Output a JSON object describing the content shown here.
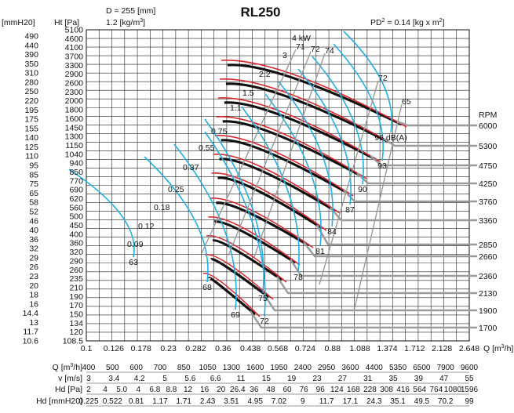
{
  "header": {
    "diameter": "D = 255 [mm]",
    "density": "1.2 [kg/m",
    "density_sup": "3",
    "density_close": "]",
    "title": "RL250",
    "pd2": "PD",
    "pd2_sup": "2",
    "pd2_rest": " = 0.14 [kg x m",
    "pd2_sup2": "2",
    "pd2_close": "]",
    "left_unit_mm": "[mmH20]",
    "left_unit_pa": "Ht [Pa]",
    "rpm_label": "RPM",
    "q_unit_right": "Q [m",
    "q_unit_right_sup": "3",
    "q_unit_right_close": "/h]"
  },
  "chart_data": {
    "type": "line",
    "title": "RL250",
    "y_pa_ticks": [
      "5100",
      "4600",
      "4100",
      "3700",
      "3300",
      "2900",
      "2600",
      "2300",
      "2000",
      "1800",
      "1600",
      "1450",
      "1300",
      "1150",
      "1040",
      "940",
      "850",
      "770",
      "690",
      "620",
      "560",
      "500",
      "450",
      "400",
      "360",
      "320",
      "290",
      "260",
      "235",
      "210",
      "190",
      "170",
      "150",
      "134",
      "120",
      "108.5"
    ],
    "y_mm_ticks": [
      "490",
      "440",
      "390",
      "350",
      "310",
      "280",
      "250",
      "220",
      "195",
      "175",
      "155",
      "140",
      "125",
      "110",
      "95",
      "85",
      "75",
      "65",
      "58",
      "52",
      "46",
      "40",
      "36",
      "32",
      "29",
      "26",
      "23",
      "20",
      "18",
      "16",
      "14.4",
      "13",
      "11.7",
      "10.6"
    ],
    "x_ticks": [
      "0.1",
      "0.126",
      "0.178",
      "0.23",
      "0.282",
      "0.36",
      "0.438",
      "0.568",
      "0.724",
      "0.88",
      "1.088",
      "1.374",
      "1.712",
      "2.128",
      "2.648"
    ],
    "rpm_values": [
      "6000",
      "5300",
      "4750",
      "4250",
      "3760",
      "3360",
      "2850",
      "2660",
      "2360",
      "2130",
      "1900",
      "1700"
    ],
    "power_labels": [
      "4 kW",
      "3",
      "2.2",
      "1.5",
      "1.1",
      "0.75",
      "0.55",
      "0.37",
      "0.25",
      "0.18",
      "0.12",
      "0.09"
    ],
    "efficiency_labels": [
      "71",
      "72",
      "74",
      "72",
      "65"
    ],
    "noise_labels": [
      "96 dB(A)",
      "93",
      "90",
      "87",
      "84",
      "81",
      "78",
      "75",
      "72",
      "69",
      "68",
      "63"
    ],
    "bottom_scales": {
      "q_label": "Q [m",
      "q_label_sup": "3",
      "q_label_close": "/h]",
      "q_values": [
        "400",
        "500",
        "600",
        "700",
        "850",
        "1050",
        "1300",
        "1600",
        "1950",
        "2400",
        "2950",
        "3600",
        "4400",
        "5350",
        "6500",
        "7900",
        "9600"
      ],
      "v_label": "v [m/s]",
      "v_values": [
        "3",
        "3.4",
        "4.2",
        "5",
        "5.6",
        "6.6",
        "11",
        "15",
        "19",
        "23",
        "27",
        "31",
        "35",
        "39",
        "47",
        "55"
      ],
      "hd_pa_label": "Hd [Pa]",
      "hd_pa_values": [
        "2",
        "4",
        "5.0",
        "4",
        "6.8",
        "8.8",
        "12",
        "16",
        "20",
        "26.4",
        "36",
        "48",
        "60",
        "76",
        "96",
        "124",
        "168",
        "228",
        "308",
        "416",
        "564",
        "764",
        "1080",
        "1596"
      ],
      "hd_mm_label": "Hd [mmH20]",
      "hd_mm_values": [
        "0.225",
        "0.522",
        "0.81",
        "1.17",
        "1.71",
        "2.43",
        "3.51",
        "4.95",
        "7.02",
        "9",
        "11.7",
        "17.1",
        "24.3",
        "35.1",
        "49.5",
        "70.2",
        "99"
      ]
    }
  },
  "colors": {
    "fan_curve": "#111111",
    "power": "#d6282e",
    "noise": "#24aee0",
    "rpm": "#9a9a9a",
    "efficiency": "#9a9a9a"
  }
}
